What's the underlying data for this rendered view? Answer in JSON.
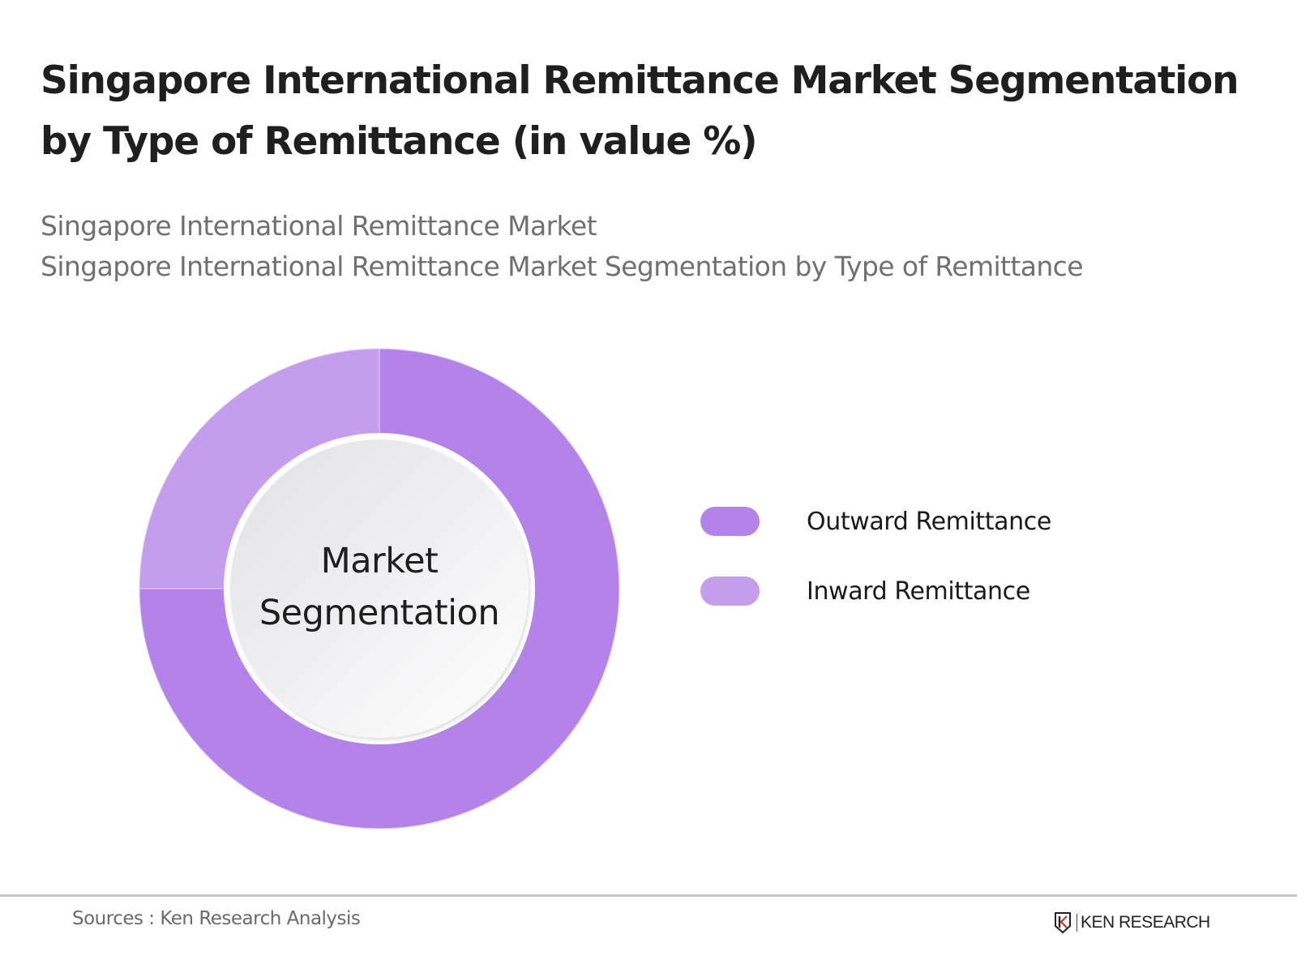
{
  "header": {
    "title": "Singapore International Remittance Market Segmentation by Type of Remittance (in value %)",
    "subtitle_line1": "Singapore International Remittance Market",
    "subtitle_line2": "Singapore International Remittance Market Segmentation by Type of Remittance"
  },
  "center_label": {
    "line1": "Market",
    "line2": "Segmentation"
  },
  "legend": {
    "items": [
      {
        "label": "Outward Remittance",
        "color": "#b383e9"
      },
      {
        "label": "Inward Remittance",
        "color": "#c59ded"
      }
    ]
  },
  "footer": {
    "source": "Sources : Ken Research Analysis",
    "logo_text": "KEN RESEARCH"
  },
  "chart_data": {
    "type": "pie",
    "subtype": "donut",
    "title": "Singapore International Remittance Market Segmentation by Type of Remittance (in value %)",
    "subtitle": "Singapore International Remittance Market Segmentation by Type of Remittance",
    "center_text": "Market Segmentation",
    "categories": [
      "Outward Remittance",
      "Inward Remittance"
    ],
    "values": [
      75,
      25
    ],
    "unit": "%",
    "colors": [
      "#b383e9",
      "#c59ded"
    ],
    "data_labels": false,
    "legend_position": "right",
    "source": "Sources : Ken Research Analysis"
  }
}
